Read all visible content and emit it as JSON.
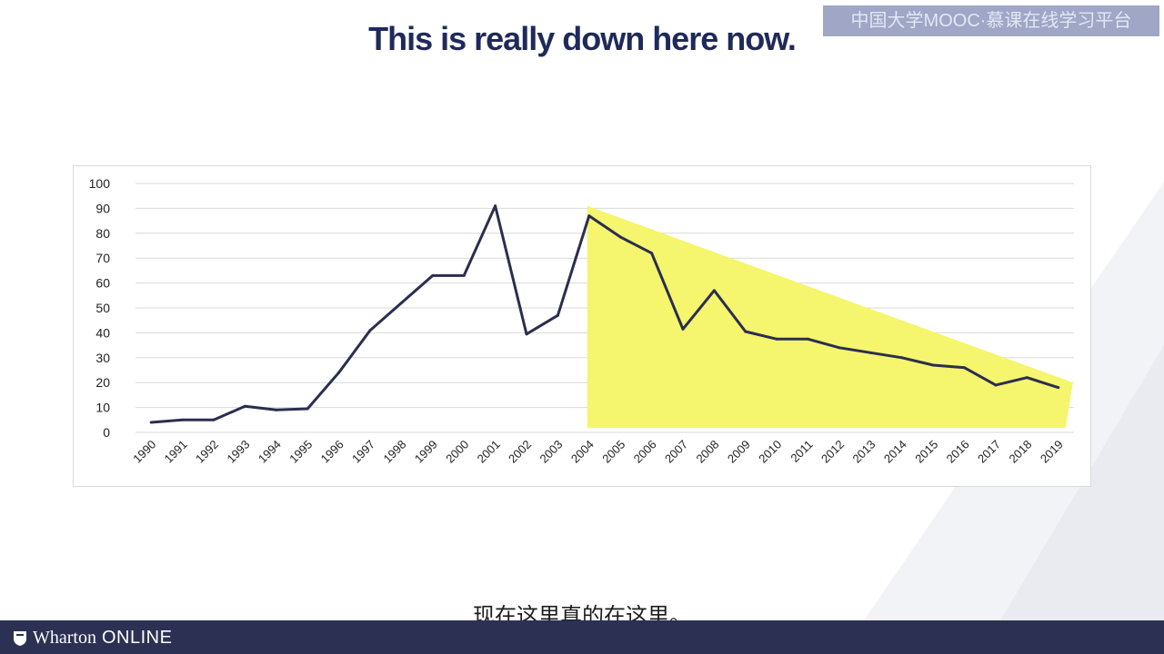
{
  "video": {
    "caption_en": "This is really down here now.",
    "caption_zh": "现在这里真的在这里。",
    "watermark": "中国大学MOOC·慕课在线学习平台",
    "brand_first": "Wharton",
    "brand_second": "ONLINE"
  },
  "colors": {
    "line": "#2a2e4f",
    "highlight": "#f5f56e",
    "grid": "#d9d9d9",
    "footer": "#2c3154"
  },
  "chart_data": {
    "type": "line",
    "title": "",
    "xlabel": "",
    "ylabel": "",
    "ylim": [
      0,
      100
    ],
    "yticks": [
      0,
      10,
      20,
      30,
      40,
      50,
      60,
      70,
      80,
      90,
      100
    ],
    "grid": true,
    "legend": "none",
    "categories": [
      "1990",
      "1991",
      "1992",
      "1993",
      "1994",
      "1995",
      "1996",
      "1997",
      "1998",
      "1999",
      "2000",
      "2001",
      "2002",
      "2003",
      "2004",
      "2005",
      "2006",
      "2007",
      "2008",
      "2009",
      "2010",
      "2011",
      "2012",
      "2013",
      "2014",
      "2015",
      "2016",
      "2017",
      "2018",
      "2019"
    ],
    "series": [
      {
        "values": [
          4,
          5,
          5,
          10.5,
          9,
          9.5,
          24,
          41,
          52,
          63,
          63,
          91,
          39.5,
          47,
          87,
          78.5,
          72,
          41.5,
          57,
          40.5,
          37.5,
          37.5,
          34,
          32,
          30,
          27,
          26,
          19,
          22,
          18
        ]
      }
    ],
    "annotation": {
      "shape": "triangle",
      "from_category": "2004",
      "to_category": "2019",
      "top_start": 91,
      "top_end": 20
    }
  }
}
